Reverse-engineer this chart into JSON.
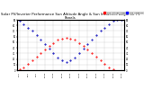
{
  "title": "Solar PV/Inverter Performance Sun Altitude Angle & Sun Incidence Angle on PV Panels",
  "title_fontsize": 2.8,
  "legend_entries": [
    "Sun Altitude Angle",
    "Sun Incidence Angle on PV Panels"
  ],
  "legend_colors": [
    "#ff0000",
    "#0000ff"
  ],
  "bg_color": "#ffffff",
  "plot_bg_color": "#ffffff",
  "grid_color": "#bbbbbb",
  "times": [
    "7:00",
    "7:30",
    "8:00",
    "8:30",
    "9:00",
    "9:30",
    "10:00",
    "10:30",
    "11:00",
    "11:30",
    "12:00",
    "12:30",
    "13:00",
    "13:30",
    "14:00",
    "14:30",
    "15:00",
    "15:30",
    "16:00",
    "16:30",
    "17:00",
    "17:30",
    "18:00",
    "18:30",
    "19:00"
  ],
  "sun_altitude": [
    2,
    5,
    11,
    17,
    24,
    31,
    37,
    43,
    49,
    54,
    57,
    58,
    57,
    54,
    49,
    43,
    37,
    31,
    24,
    17,
    11,
    5,
    2,
    0,
    0
  ],
  "sun_incidence": [
    88,
    82,
    76,
    70,
    63,
    55,
    47,
    39,
    31,
    23,
    18,
    15,
    18,
    23,
    31,
    39,
    47,
    55,
    63,
    70,
    76,
    82,
    88,
    90,
    90
  ],
  "ylim": [
    0,
    90
  ],
  "yticks": [
    0,
    10,
    20,
    30,
    40,
    50,
    60,
    70,
    80,
    90
  ],
  "marker_size": 1.0,
  "alt_color": "#ff0000",
  "inc_color": "#0000bb"
}
